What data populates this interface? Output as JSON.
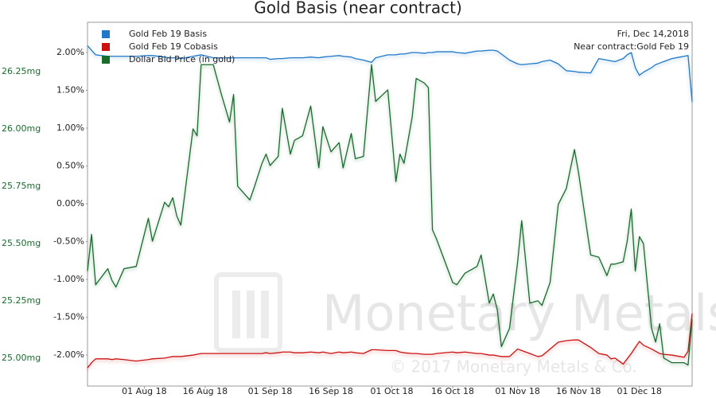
{
  "chart_data": {
    "type": "line",
    "title": "Gold Basis (near contract)",
    "annotations": [
      "Fri, Dec 14,2018",
      "Near contract:Gold Feb 19"
    ],
    "watermark": [
      "Monetary Metals",
      "© 2017 Monetary Metals & Co."
    ],
    "legend": "top-left",
    "grid": false,
    "xlim": [
      "2018-07-18",
      "2018-12-14"
    ],
    "xticks": [
      {
        "value": "2018-08-01",
        "label": "01 Aug 18"
      },
      {
        "value": "2018-08-16",
        "label": "16 Aug 18"
      },
      {
        "value": "2018-09-01",
        "label": "01 Sep 18"
      },
      {
        "value": "2018-09-16",
        "label": "16 Sep 18"
      },
      {
        "value": "2018-10-01",
        "label": "01 Oct 18"
      },
      {
        "value": "2018-10-16",
        "label": "16 Oct 18"
      },
      {
        "value": "2018-11-01",
        "label": "01 Nov 18"
      },
      {
        "value": "2018-11-16",
        "label": "16 Nov 18"
      },
      {
        "value": "2018-12-01",
        "label": "01 Dec 18"
      }
    ],
    "ylim": [
      24.878,
      26.465
    ],
    "yticks": [
      {
        "value": 25.0,
        "label": "25.00mg"
      },
      {
        "value": 25.25,
        "label": "25.25mg"
      },
      {
        "value": 25.5,
        "label": "25.50mg"
      },
      {
        "value": 25.75,
        "label": "25.75mg"
      },
      {
        "value": 26.0,
        "label": "26.00mg"
      },
      {
        "value": 26.25,
        "label": "26.25mg"
      }
    ],
    "y2lim": [
      -2.41,
      2.4
    ],
    "y2ticks": [
      {
        "value": -2.0,
        "label": "-2.00%"
      },
      {
        "value": -1.5,
        "label": "-1.50%"
      },
      {
        "value": -1.0,
        "label": "-1.00%"
      },
      {
        "value": -0.5,
        "label": "-0.50%"
      },
      {
        "value": 0.0,
        "label": "0.00%"
      },
      {
        "value": 0.5,
        "label": "0.50%"
      },
      {
        "value": 1.0,
        "label": "1.00%"
      },
      {
        "value": 1.5,
        "label": "1.50%"
      },
      {
        "value": 2.0,
        "label": "2.00%"
      }
    ],
    "x": [
      "2018-07-18",
      "2018-07-19",
      "2018-07-20",
      "2018-07-23",
      "2018-07-24",
      "2018-07-25",
      "2018-07-27",
      "2018-07-30",
      "2018-08-02",
      "2018-08-03",
      "2018-08-06",
      "2018-08-07",
      "2018-08-08",
      "2018-08-09",
      "2018-08-10",
      "2018-08-13",
      "2018-08-14",
      "2018-08-15",
      "2018-08-18",
      "2018-08-20",
      "2018-08-22",
      "2018-08-23",
      "2018-08-24",
      "2018-08-27",
      "2018-08-28",
      "2018-08-30",
      "2018-08-31",
      "2018-09-01",
      "2018-09-03",
      "2018-09-04",
      "2018-09-06",
      "2018-09-07",
      "2018-09-09",
      "2018-09-11",
      "2018-09-13",
      "2018-09-14",
      "2018-09-16",
      "2018-09-18",
      "2018-09-19",
      "2018-09-21",
      "2018-09-22",
      "2018-09-24",
      "2018-09-26",
      "2018-09-27",
      "2018-09-30",
      "2018-10-02",
      "2018-10-03",
      "2018-10-04",
      "2018-10-06",
      "2018-10-07",
      "2018-10-09",
      "2018-10-10",
      "2018-10-11",
      "2018-10-12",
      "2018-10-16",
      "2018-10-17",
      "2018-10-19",
      "2018-10-22",
      "2018-10-23",
      "2018-10-25",
      "2018-10-26",
      "2018-10-27",
      "2018-10-28",
      "2018-10-30",
      "2018-11-01",
      "2018-11-02",
      "2018-11-04",
      "2018-11-06",
      "2018-11-07",
      "2018-11-09",
      "2018-11-11",
      "2018-11-13",
      "2018-11-15",
      "2018-11-16",
      "2018-11-19",
      "2018-11-21",
      "2018-11-23",
      "2018-11-24",
      "2018-11-25",
      "2018-11-27",
      "2018-11-28",
      "2018-11-29",
      "2018-11-30",
      "2018-12-01",
      "2018-12-02",
      "2018-12-04",
      "2018-12-05",
      "2018-12-06",
      "2018-12-07",
      "2018-12-09",
      "2018-12-11",
      "2018-12-12",
      "2018-12-13",
      "2018-12-14"
    ],
    "series": [
      {
        "name": "Gold Feb 19 Basis",
        "color": "#1f78c8",
        "axis": "y2",
        "values": [
          2.09,
          2.03,
          1.97,
          1.95,
          1.95,
          1.95,
          1.95,
          1.95,
          1.96,
          1.96,
          1.94,
          1.93,
          1.93,
          1.93,
          1.92,
          1.95,
          1.96,
          1.97,
          1.93,
          1.93,
          1.93,
          1.93,
          1.93,
          1.93,
          1.93,
          1.93,
          1.93,
          1.91,
          1.92,
          1.92,
          1.93,
          1.93,
          1.93,
          1.94,
          1.93,
          1.94,
          1.95,
          1.96,
          1.95,
          1.94,
          1.92,
          1.9,
          1.87,
          1.93,
          1.97,
          1.97,
          1.98,
          1.98,
          2.0,
          2.0,
          1.99,
          2.0,
          2.0,
          2.01,
          2.01,
          2.0,
          1.99,
          2.02,
          2.02,
          2.03,
          2.03,
          2.02,
          1.98,
          1.9,
          1.85,
          1.84,
          1.85,
          1.86,
          1.88,
          1.9,
          1.85,
          1.76,
          1.75,
          1.74,
          1.73,
          1.92,
          1.9,
          1.89,
          1.88,
          1.92,
          1.97,
          2.0,
          1.8,
          1.7,
          1.74,
          1.8,
          1.84,
          1.86,
          1.88,
          1.92,
          1.94,
          1.95,
          1.96,
          1.35
        ]
      },
      {
        "name": "Gold Feb 19 Cobasis",
        "color": "#cc1111",
        "axis": "y2",
        "values": [
          -2.17,
          -2.1,
          -2.05,
          -2.05,
          -2.06,
          -2.05,
          -2.06,
          -2.08,
          -2.06,
          -2.05,
          -2.04,
          -2.03,
          -2.02,
          -2.02,
          -2.02,
          -2.0,
          -1.99,
          -1.98,
          -1.98,
          -1.98,
          -1.98,
          -1.98,
          -1.98,
          -1.98,
          -1.98,
          -1.98,
          -1.97,
          -1.98,
          -1.97,
          -1.96,
          -1.96,
          -1.97,
          -1.97,
          -1.96,
          -1.97,
          -1.96,
          -1.98,
          -1.96,
          -1.97,
          -1.96,
          -1.97,
          -1.98,
          -1.93,
          -1.93,
          -1.94,
          -1.94,
          -1.96,
          -1.97,
          -1.98,
          -1.98,
          -1.99,
          -1.99,
          -1.99,
          -1.98,
          -1.96,
          -1.97,
          -1.96,
          -1.98,
          -1.98,
          -2.0,
          -2.0,
          -2.01,
          -2.02,
          -2.02,
          -1.92,
          -1.94,
          -1.98,
          -2.02,
          -2.01,
          -1.92,
          -1.83,
          -1.81,
          -1.8,
          -1.8,
          -1.9,
          -1.98,
          -2.0,
          -2.05,
          -2.04,
          -2.12,
          -2.05,
          -1.98,
          -1.9,
          -1.82,
          -1.87,
          -1.92,
          -1.95,
          -1.98,
          -1.99,
          -2.0,
          -2.02,
          -2.03,
          -1.95,
          -1.45
        ]
      },
      {
        "name": "Dollar Bid Price (in gold)",
        "color": "#1a6b2e",
        "values": [
          25.38,
          25.54,
          25.32,
          25.39,
          25.34,
          25.31,
          25.39,
          25.4,
          25.61,
          25.51,
          25.68,
          25.66,
          25.7,
          25.62,
          25.58,
          26.0,
          25.97,
          26.28,
          26.28,
          26.15,
          26.03,
          26.15,
          25.75,
          25.69,
          25.74,
          25.85,
          25.89,
          25.84,
          25.88,
          26.09,
          25.89,
          25.95,
          25.97,
          26.1,
          25.83,
          26.01,
          25.9,
          25.94,
          25.83,
          25.98,
          25.87,
          25.88,
          26.28,
          26.12,
          26.17,
          25.77,
          25.89,
          25.85,
          26.05,
          26.22,
          26.2,
          26.18,
          25.56,
          25.52,
          25.33,
          25.32,
          25.37,
          25.4,
          25.45,
          25.24,
          25.28,
          25.21,
          25.05,
          25.13,
          25.42,
          25.6,
          25.24,
          25.25,
          25.23,
          25.33,
          25.67,
          25.74,
          25.91,
          25.81,
          25.45,
          25.44,
          25.36,
          25.41,
          25.41,
          25.42,
          25.51,
          25.65,
          25.38,
          25.53,
          25.5,
          25.13,
          25.07,
          25.15,
          25.0,
          24.98,
          24.98,
          24.98,
          24.97,
          25.17
        ]
      }
    ]
  }
}
